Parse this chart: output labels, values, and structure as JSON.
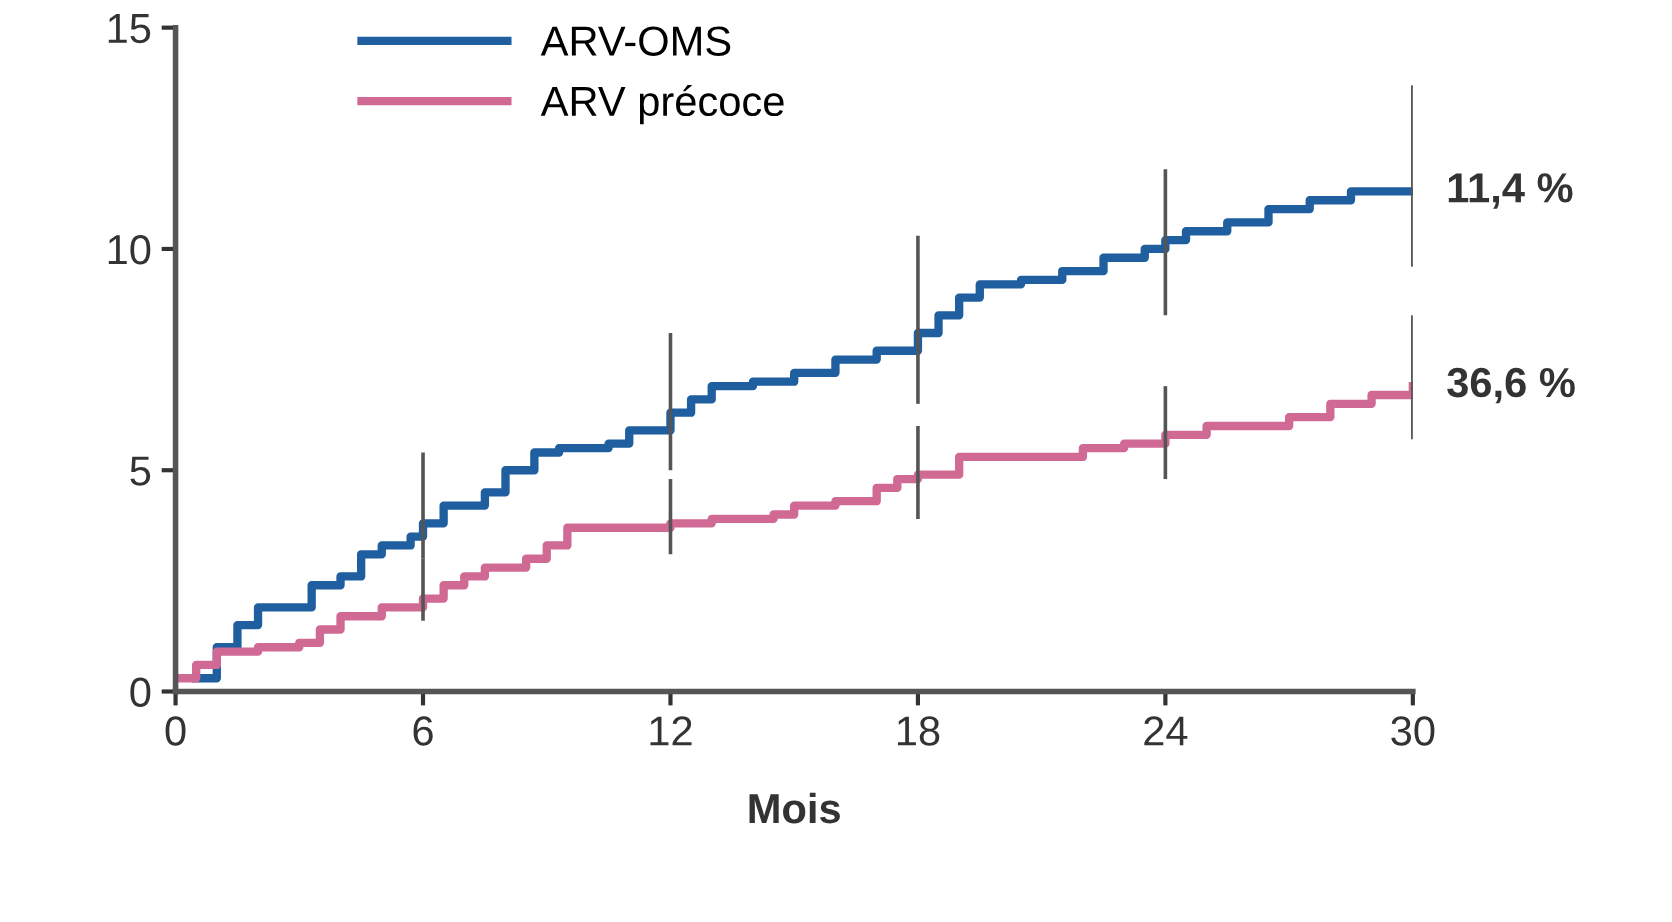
{
  "chart_data": {
    "type": "step",
    "xlabel": "Mois",
    "xlim": [
      0,
      30
    ],
    "ylim": [
      0,
      15
    ],
    "xticks": [
      0,
      6,
      12,
      18,
      24,
      30
    ],
    "yticks": [
      0,
      5,
      10,
      15
    ],
    "grid": false,
    "legend": "top left",
    "series": [
      {
        "name": "ARV-OMS",
        "color": "#1f5fa0",
        "x": [
          0.5,
          1,
          1.5,
          2,
          3,
          3.3,
          4,
          4.5,
          5,
          5.7,
          6,
          6.5,
          7.5,
          8,
          8.7,
          9.3,
          10.5,
          11,
          12,
          12.5,
          13,
          14,
          15,
          16,
          17,
          18,
          18.5,
          19,
          19.5,
          20.5,
          21.5,
          22.5,
          23.5,
          24,
          24.5,
          25.5,
          26.5,
          27.5,
          28.5,
          30
        ],
        "values": [
          0.3,
          1.0,
          1.5,
          1.9,
          1.9,
          2.4,
          2.6,
          3.1,
          3.3,
          3.5,
          3.8,
          4.2,
          4.5,
          5.0,
          5.4,
          5.5,
          5.6,
          5.9,
          6.3,
          6.6,
          6.9,
          7.0,
          7.2,
          7.5,
          7.7,
          8.1,
          8.5,
          8.9,
          9.2,
          9.3,
          9.5,
          9.8,
          10.0,
          10.2,
          10.4,
          10.6,
          10.9,
          11.1,
          11.3,
          11.3
        ],
        "errors": [
          null,
          null,
          null,
          null,
          null,
          null,
          null,
          null,
          null,
          null,
          [
            3.0,
            5.4
          ],
          null,
          null,
          null,
          null,
          null,
          null,
          null,
          [
            5.0,
            8.1
          ],
          null,
          null,
          null,
          null,
          null,
          null,
          [
            6.5,
            10.3
          ],
          null,
          null,
          null,
          null,
          null,
          null,
          null,
          [
            8.5,
            11.8
          ],
          null,
          null,
          null,
          null,
          null,
          [
            9.6,
            13.7
          ]
        ]
      },
      {
        "name": "ARV précoce",
        "color": "#d06a95",
        "x": [
          0,
          0.5,
          1,
          2,
          3,
          3.5,
          4,
          5,
          6,
          6.5,
          7,
          7.5,
          8.5,
          9,
          9.5,
          12,
          13,
          14.5,
          15,
          16,
          17,
          17.5,
          18,
          19,
          21,
          22,
          23,
          24,
          25,
          27,
          28,
          29,
          30
        ],
        "values": [
          0.3,
          0.6,
          0.9,
          1.0,
          1.1,
          1.4,
          1.7,
          1.9,
          2.1,
          2.4,
          2.6,
          2.8,
          3.0,
          3.3,
          3.7,
          3.8,
          3.9,
          4.0,
          4.2,
          4.3,
          4.6,
          4.8,
          4.9,
          5.3,
          5.3,
          5.5,
          5.6,
          5.8,
          6.0,
          6.2,
          6.5,
          6.7,
          6.9
        ],
        "errors": [
          null,
          null,
          null,
          null,
          null,
          null,
          null,
          null,
          [
            1.6,
            3.0
          ],
          null,
          null,
          null,
          null,
          null,
          null,
          [
            3.1,
            4.8
          ],
          null,
          null,
          null,
          null,
          null,
          null,
          [
            3.9,
            6.0
          ],
          null,
          null,
          null,
          null,
          [
            4.8,
            6.9
          ],
          null,
          null,
          null,
          null,
          [
            5.7,
            8.5
          ]
        ]
      }
    ],
    "annotations": [
      {
        "text": "11,4 %",
        "x": 30,
        "y": 11.3
      },
      {
        "text": "36,6 %",
        "x": 30,
        "y": 6.9
      }
    ]
  }
}
